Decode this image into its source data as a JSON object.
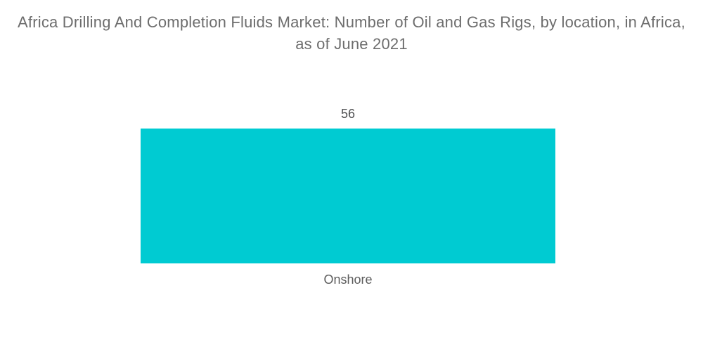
{
  "chart_data": {
    "type": "bar",
    "title": "Africa Drilling And Completion Fluids Market: Number of Oil and Gas Rigs, by location, in Africa, as of June 2021",
    "categories": [
      "Onshore"
    ],
    "values": [
      56
    ],
    "xlabel": "",
    "ylabel": "",
    "ylim": [
      0,
      56
    ],
    "grid": false,
    "legend": false,
    "value_labels_shown": true,
    "axes_shown": false,
    "bar_color": "#00cbd2",
    "title_color": "#6d6d6d",
    "label_color": "#4f5052",
    "background_color": "#ffffff"
  }
}
